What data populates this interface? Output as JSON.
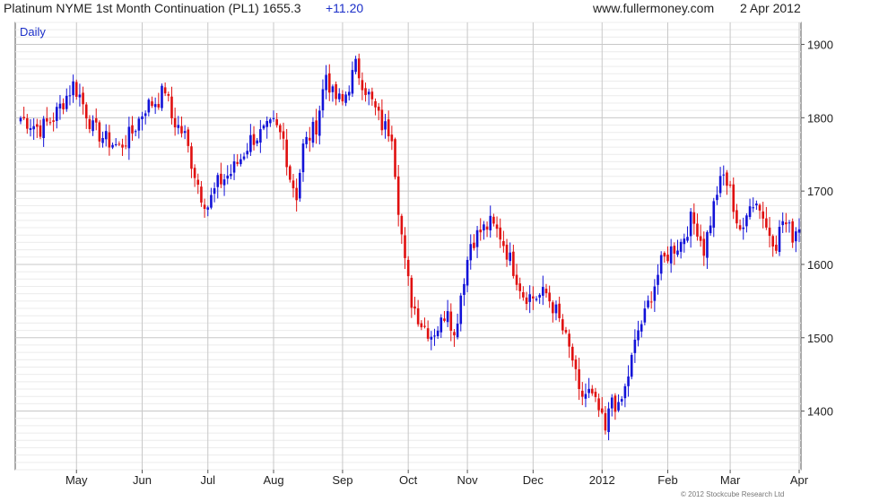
{
  "header": {
    "title": "Platinum NYME 1st Month Continuation (PL1) 1655.3",
    "change": "+11.20",
    "website": "www.fullermoney.com",
    "date": "2 Apr 2012"
  },
  "footer": {
    "copyright": "© 2012 Stockcube Research Ltd"
  },
  "colors": {
    "up": "#1212d8",
    "down": "#e01010",
    "grid": "#c8c8c8",
    "label_accent": "#1a2ec8"
  },
  "chart_data": {
    "type": "ohlc-candlestick",
    "frequency_label": "Daily",
    "y_range": [
      1320,
      1930
    ],
    "y_ticks": [
      1400,
      1500,
      1600,
      1700,
      1800,
      1900
    ],
    "x_range_index": [
      0,
      237
    ],
    "x_ticks": [
      {
        "label": "May",
        "index": 17
      },
      {
        "label": "Jun",
        "index": 37
      },
      {
        "label": "Jul",
        "index": 57
      },
      {
        "label": "Aug",
        "index": 77
      },
      {
        "label": "Sep",
        "index": 98
      },
      {
        "label": "Oct",
        "index": 118
      },
      {
        "label": "Nov",
        "index": 136
      },
      {
        "label": "Dec",
        "index": 156
      },
      {
        "label": "2012",
        "index": 177
      },
      {
        "label": "Feb",
        "index": 197
      },
      {
        "label": "Mar",
        "index": 216
      },
      {
        "label": "Apr",
        "index": 237
      }
    ],
    "anchors": [
      [
        0,
        1800
      ],
      [
        6,
        1785
      ],
      [
        10,
        1800
      ],
      [
        16,
        1845
      ],
      [
        18,
        1830
      ],
      [
        22,
        1785
      ],
      [
        26,
        1770
      ],
      [
        30,
        1760
      ],
      [
        34,
        1780
      ],
      [
        38,
        1815
      ],
      [
        42,
        1825
      ],
      [
        44,
        1840
      ],
      [
        46,
        1800
      ],
      [
        50,
        1775
      ],
      [
        52,
        1740
      ],
      [
        55,
        1695
      ],
      [
        57,
        1680
      ],
      [
        60,
        1710
      ],
      [
        64,
        1725
      ],
      [
        67,
        1745
      ],
      [
        70,
        1770
      ],
      [
        74,
        1780
      ],
      [
        77,
        1790
      ],
      [
        80,
        1770
      ],
      [
        82,
        1720
      ],
      [
        84,
        1695
      ],
      [
        86,
        1760
      ],
      [
        90,
        1790
      ],
      [
        93,
        1860
      ],
      [
        95,
        1830
      ],
      [
        98,
        1820
      ],
      [
        102,
        1870
      ],
      [
        106,
        1830
      ],
      [
        110,
        1790
      ],
      [
        113,
        1780
      ],
      [
        115,
        1680
      ],
      [
        117,
        1600
      ],
      [
        119,
        1550
      ],
      [
        122,
        1520
      ],
      [
        125,
        1505
      ],
      [
        128,
        1520
      ],
      [
        130,
        1545
      ],
      [
        132,
        1500
      ],
      [
        134,
        1560
      ],
      [
        137,
        1630
      ],
      [
        140,
        1645
      ],
      [
        143,
        1655
      ],
      [
        146,
        1640
      ],
      [
        150,
        1595
      ],
      [
        153,
        1560
      ],
      [
        156,
        1555
      ],
      [
        160,
        1560
      ],
      [
        163,
        1535
      ],
      [
        165,
        1510
      ],
      [
        168,
        1470
      ],
      [
        170,
        1420
      ],
      [
        173,
        1425
      ],
      [
        176,
        1400
      ],
      [
        178,
        1370
      ],
      [
        180,
        1420
      ],
      [
        182,
        1400
      ],
      [
        184,
        1430
      ],
      [
        186,
        1470
      ],
      [
        188,
        1510
      ],
      [
        190,
        1530
      ],
      [
        192,
        1560
      ],
      [
        195,
        1600
      ],
      [
        198,
        1620
      ],
      [
        201,
        1630
      ],
      [
        204,
        1660
      ],
      [
        206,
        1650
      ],
      [
        208,
        1620
      ],
      [
        210,
        1660
      ],
      [
        212,
        1700
      ],
      [
        214,
        1720
      ],
      [
        216,
        1700
      ],
      [
        218,
        1660
      ],
      [
        220,
        1640
      ],
      [
        222,
        1690
      ],
      [
        225,
        1680
      ],
      [
        227,
        1650
      ],
      [
        230,
        1630
      ],
      [
        232,
        1660
      ],
      [
        235,
        1640
      ],
      [
        237,
        1655
      ]
    ]
  }
}
